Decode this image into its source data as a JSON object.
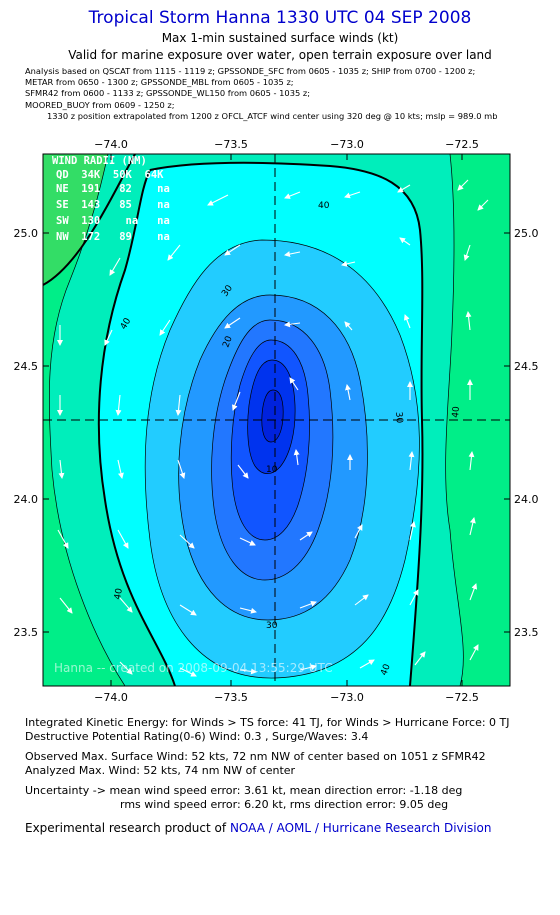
{
  "header": {
    "title": "Tropical Storm Hanna 1330 UTC 04 SEP 2008",
    "subtitle": "Max 1-min sustained surface winds (kt)",
    "valid_for": "Valid for marine exposure over water, open terrain exposure over land",
    "analysis_lines": [
      "Analysis based on  QSCAT from 1115 - 1119 z;  GPSSONDE_SFC from 0605 - 1035 z;  SHIP from 0700 - 1200 z;",
      "METAR from 0650 - 1300 z;  GPSSONDE_MBL from 0605 - 1035 z;",
      "SFMR42 from 0600 - 1133 z;  GPSSONDE_WL150 from 0605 - 1035 z;",
      "MOORED_BUOY from 0609 - 1250 z;"
    ],
    "position_note": "1330 z position extrapolated from 1200 z OFCL_ATCF wind center using 320 deg @ 10 kts; mslp = 989.0 mb"
  },
  "map": {
    "lon_ticks": [
      -74.0,
      -73.5,
      -73.0,
      -72.5
    ],
    "lon_labels": [
      "−74.0",
      "−73.5",
      "−73.0",
      "−72.5"
    ],
    "lat_ticks": [
      25.0,
      24.5,
      24.0,
      23.5
    ],
    "lat_labels": [
      "25.0",
      "24.5",
      "24.0",
      "23.5"
    ],
    "lon_range": [
      -74.25,
      -72.38
    ],
    "lat_range": [
      23.3,
      25.3
    ],
    "center": {
      "lon": -73.27,
      "lat": 24.29
    },
    "contour_labels": [
      "40",
      "30",
      "20",
      "10",
      "30",
      "40",
      "40",
      "30",
      "40",
      "40"
    ],
    "watermark": "Hanna -- created on 2008-09-04 13:55:29 UTC",
    "colors": {
      "land_green": "#33dd66",
      "green_40": "#00ee88",
      "teal_30": "#00eebb",
      "cyan": "#00ffff",
      "sky": "#22ccff",
      "blue_20": "#2299ff",
      "blue_15": "#2277ff",
      "blue_10": "#1155ff",
      "blue_core": "#0033ee",
      "arrow": "#ffffff"
    }
  },
  "wind_radii": {
    "title": "WIND RADII (NM)",
    "header": "QD  34K  50K  64K",
    "rows": [
      "NE  191   82    na",
      "SE  143   85    na",
      "SW  130    na   na",
      "NW  172   89    na"
    ]
  },
  "stats": {
    "ike": "Integrated Kinetic Energy:  for Winds > TS force: 41 TJ,  for Winds > Hurricane Force: 0 TJ",
    "dpr": "Destructive Potential Rating(0-6)   Wind: 0.3 , Surge/Waves: 3.4",
    "observed": "Observed Max. Surface Wind: 52 kts, 72 nm NW of center based on 1051 z SFMR42",
    "analyzed": "Analyzed Max. Wind: 52 kts, 74 nm NW of center",
    "uncertainty1": "Uncertainty -> mean wind speed error: 3.61 kt,   mean direction error:  -1.18 deg",
    "uncertainty2": "rms wind speed error: 6.20 kt,   rms direction error: 9.05 deg"
  },
  "footer": {
    "prefix": "Experimental research product of",
    "org": "NOAA / AOML / Hurricane Research Division"
  }
}
